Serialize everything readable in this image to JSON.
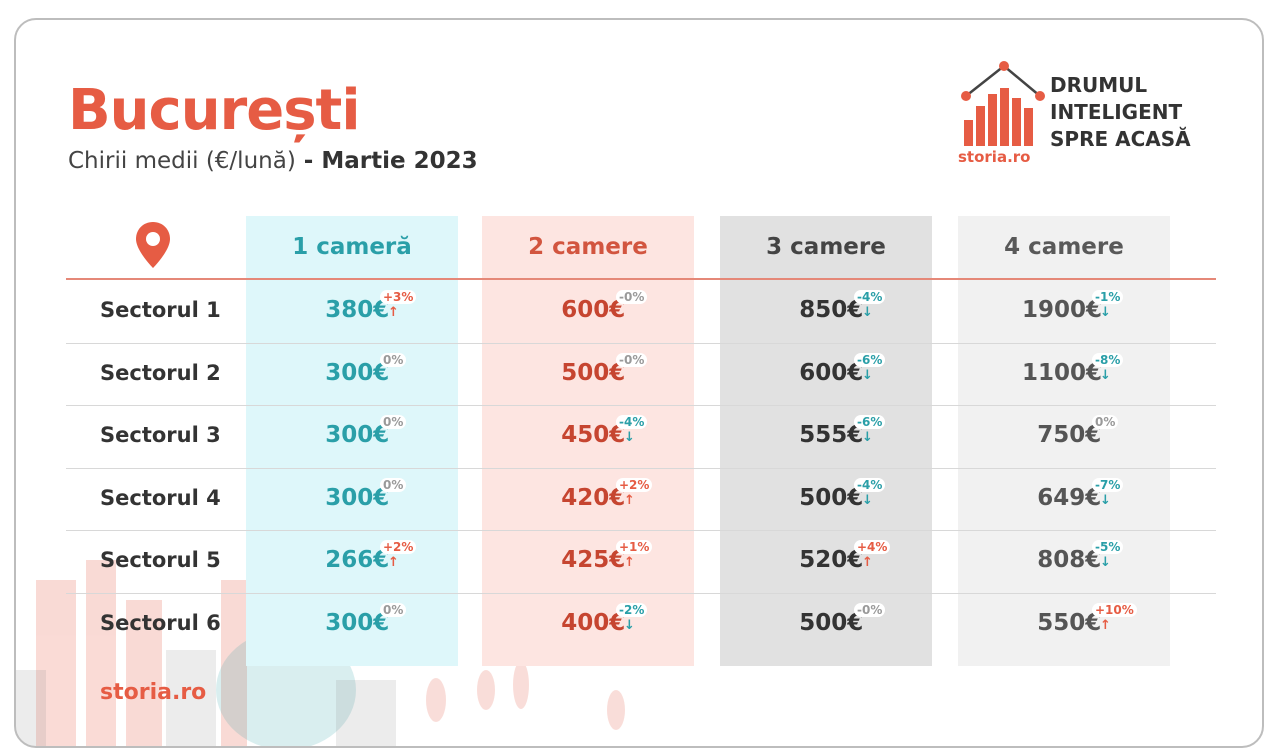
{
  "title": "București",
  "subtitle": {
    "prefix": "Chirii medii (€/lună)",
    "separator": " - ",
    "period": "Martie 2023"
  },
  "brand": {
    "tagline": "DRUMUL\nINTELIGENT\nSPRE ACASĂ",
    "logo_text": "storia.ro"
  },
  "footer": {
    "brand": "storia.ro"
  },
  "icons": {
    "location": "map-pin-icon"
  },
  "colors": {
    "accent": "#e65c44",
    "teal": "#2a9fa8"
  },
  "columns": [
    "1 cameră",
    "2 camere",
    "3 camere",
    "4 camere"
  ],
  "rows": [
    {
      "label": "Sectorul 1",
      "cells": [
        {
          "value": "380€",
          "change": "+3%",
          "dir": "up"
        },
        {
          "value": "600€",
          "change": "-0%",
          "dir": "zero"
        },
        {
          "value": "850€",
          "change": "-4%",
          "dir": "down"
        },
        {
          "value": "1900€",
          "change": "-1%",
          "dir": "down"
        }
      ]
    },
    {
      "label": "Sectorul 2",
      "cells": [
        {
          "value": "300€",
          "change": "0%",
          "dir": "zero"
        },
        {
          "value": "500€",
          "change": "-0%",
          "dir": "zero"
        },
        {
          "value": "600€",
          "change": "-6%",
          "dir": "down"
        },
        {
          "value": "1100€",
          "change": "-8%",
          "dir": "down"
        }
      ]
    },
    {
      "label": "Sectorul 3",
      "cells": [
        {
          "value": "300€",
          "change": "0%",
          "dir": "zero"
        },
        {
          "value": "450€",
          "change": "-4%",
          "dir": "down"
        },
        {
          "value": "555€",
          "change": "-6%",
          "dir": "down"
        },
        {
          "value": "750€",
          "change": "0%",
          "dir": "zero"
        }
      ]
    },
    {
      "label": "Sectorul 4",
      "cells": [
        {
          "value": "300€",
          "change": "0%",
          "dir": "zero"
        },
        {
          "value": "420€",
          "change": "+2%",
          "dir": "up"
        },
        {
          "value": "500€",
          "change": "-4%",
          "dir": "down"
        },
        {
          "value": "649€",
          "change": "-7%",
          "dir": "down"
        }
      ]
    },
    {
      "label": "Sectorul 5",
      "cells": [
        {
          "value": "266€",
          "change": "+2%",
          "dir": "up"
        },
        {
          "value": "425€",
          "change": "+1%",
          "dir": "up"
        },
        {
          "value": "520€",
          "change": "+4%",
          "dir": "up"
        },
        {
          "value": "808€",
          "change": "-5%",
          "dir": "down"
        }
      ]
    },
    {
      "label": "Sectorul 6",
      "cells": [
        {
          "value": "300€",
          "change": "0%",
          "dir": "zero"
        },
        {
          "value": "400€",
          "change": "-2%",
          "dir": "down"
        },
        {
          "value": "500€",
          "change": "-0%",
          "dir": "zero"
        },
        {
          "value": "550€",
          "change": "+10%",
          "dir": "up"
        }
      ]
    }
  ]
}
